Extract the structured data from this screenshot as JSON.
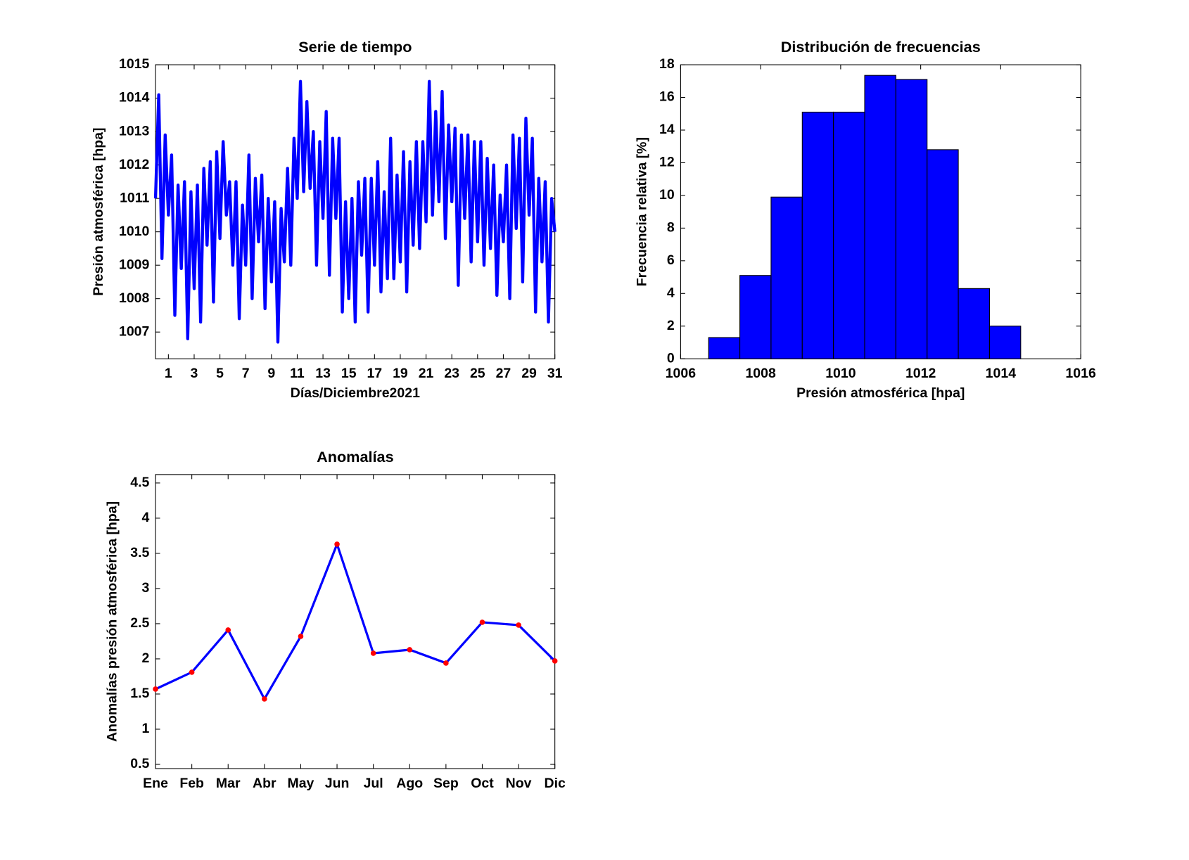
{
  "chart_data": [
    {
      "type": "line",
      "title": "Serie de tiempo",
      "xlabel": "Días/Diciembre2021",
      "ylabel": "Presión atmosférica [hpa]",
      "color": "#0000ff",
      "x": [
        0,
        0.25,
        0.5,
        0.75,
        1,
        1.25,
        1.5,
        1.75,
        2,
        2.25,
        2.5,
        2.75,
        3,
        3.25,
        3.5,
        3.75,
        4,
        4.25,
        4.5,
        4.75,
        5,
        5.25,
        5.5,
        5.75,
        6,
        6.25,
        6.5,
        6.75,
        7,
        7.25,
        7.5,
        7.75,
        8,
        8.25,
        8.5,
        8.75,
        9,
        9.25,
        9.5,
        9.75,
        10,
        10.25,
        10.5,
        10.75,
        11,
        11.25,
        11.5,
        11.75,
        12,
        12.25,
        12.5,
        12.75,
        13,
        13.25,
        13.5,
        13.75,
        14,
        14.25,
        14.5,
        14.75,
        15,
        15.25,
        15.5,
        15.75,
        16,
        16.25,
        16.5,
        16.75,
        17,
        17.25,
        17.5,
        17.75,
        18,
        18.25,
        18.5,
        18.75,
        19,
        19.25,
        19.5,
        19.75,
        20,
        20.25,
        20.5,
        20.75,
        21,
        21.25,
        21.5,
        21.75,
        22,
        22.25,
        22.5,
        22.75,
        23,
        23.25,
        23.5,
        23.75,
        24,
        24.25,
        24.5,
        24.75,
        25,
        25.25,
        25.5,
        25.75,
        26,
        26.25,
        26.5,
        26.75,
        27,
        27.25,
        27.5,
        27.75,
        28,
        28.25,
        28.5,
        28.75,
        29,
        29.25,
        29.5,
        29.75,
        30,
        30.25,
        30.5,
        30.75,
        31
      ],
      "values": [
        1011,
        1014.1,
        1009.2,
        1012.9,
        1010.5,
        1012.3,
        1007.5,
        1011.4,
        1008.9,
        1011.5,
        1006.8,
        1011.2,
        1008.3,
        1011.4,
        1007.3,
        1011.9,
        1009.6,
        1012.1,
        1007.9,
        1012.4,
        1009.8,
        1012.7,
        1010.5,
        1011.5,
        1009.0,
        1011.5,
        1007.4,
        1010.8,
        1009.0,
        1012.3,
        1008.0,
        1011.6,
        1009.7,
        1011.7,
        1007.7,
        1011.0,
        1008.5,
        1010.9,
        1006.7,
        1010.7,
        1009.1,
        1011.9,
        1009.0,
        1012.8,
        1011.0,
        1014.5,
        1011.2,
        1013.9,
        1011.3,
        1013.0,
        1009.0,
        1012.7,
        1010.4,
        1013.6,
        1008.7,
        1012.8,
        1010.4,
        1012.8,
        1007.6,
        1010.9,
        1008.0,
        1011.0,
        1007.3,
        1011.5,
        1009.3,
        1011.6,
        1007.6,
        1011.6,
        1009.0,
        1012.1,
        1008.2,
        1011.2,
        1008.6,
        1012.8,
        1008.6,
        1011.7,
        1009.1,
        1012.4,
        1008.2,
        1012.1,
        1009.6,
        1012.7,
        1009.5,
        1012.7,
        1010.3,
        1014.5,
        1010.5,
        1013.6,
        1010.9,
        1014.2,
        1009.8,
        1013.2,
        1010.9,
        1013.1,
        1008.4,
        1012.9,
        1010.4,
        1012.9,
        1009.1,
        1012.7,
        1009.7,
        1012.7,
        1009.0,
        1012.2,
        1009.5,
        1012.0,
        1008.1,
        1011.1,
        1009.7,
        1012.0,
        1008.0,
        1012.9,
        1010.1,
        1012.8,
        1008.5,
        1013.4,
        1010.5,
        1012.8,
        1007.6,
        1011.6,
        1009.1,
        1011.5,
        1007.3,
        1011.0,
        1010.0
      ],
      "xlim": [
        0,
        31
      ],
      "xticks": [
        1,
        3,
        5,
        7,
        9,
        11,
        13,
        15,
        17,
        19,
        21,
        23,
        25,
        27,
        29,
        31
      ],
      "ylim": [
        1006.2,
        1015
      ],
      "yticks": [
        1007,
        1008,
        1009,
        1010,
        1011,
        1012,
        1013,
        1014,
        1015
      ]
    },
    {
      "type": "histogram",
      "title": "Distribución de frecuencias",
      "xlabel": "Presión atmosférica [hpa]",
      "ylabel": "Frecuencia relativa [%]",
      "color": "#0000ff",
      "bins": [
        1006.7,
        1007.48,
        1008.26,
        1009.04,
        1009.82,
        1010.6,
        1011.38,
        1012.16,
        1012.94,
        1013.72,
        1014.5
      ],
      "values": [
        1.3,
        5.1,
        9.9,
        15.1,
        15.1,
        17.35,
        17.1,
        12.8,
        4.3,
        2.0
      ],
      "xlim": [
        1006,
        1016
      ],
      "xticks": [
        1006,
        1008,
        1010,
        1012,
        1014,
        1016
      ],
      "ylim": [
        0,
        18
      ],
      "yticks": [
        0,
        2,
        4,
        6,
        8,
        10,
        12,
        14,
        16,
        18
      ]
    },
    {
      "type": "line",
      "title": "Anomalías",
      "ylabel": "Anomalías presión atmosférica [hpa]",
      "color": "#0000ff",
      "marker_color": "#ff0000",
      "categories": [
        "Ene",
        "Feb",
        "Mar",
        "Abr",
        "May",
        "Jun",
        "Jul",
        "Ago",
        "Sep",
        "Oct",
        "Nov",
        "Dic"
      ],
      "values": [
        1.57,
        1.81,
        2.41,
        1.43,
        2.32,
        3.63,
        2.08,
        2.13,
        1.94,
        2.52,
        2.48,
        1.97
      ],
      "ylim": [
        0.44,
        4.62
      ],
      "yticks": [
        0.5,
        1,
        1.5,
        2,
        2.5,
        3,
        3.5,
        4,
        4.5
      ]
    }
  ]
}
